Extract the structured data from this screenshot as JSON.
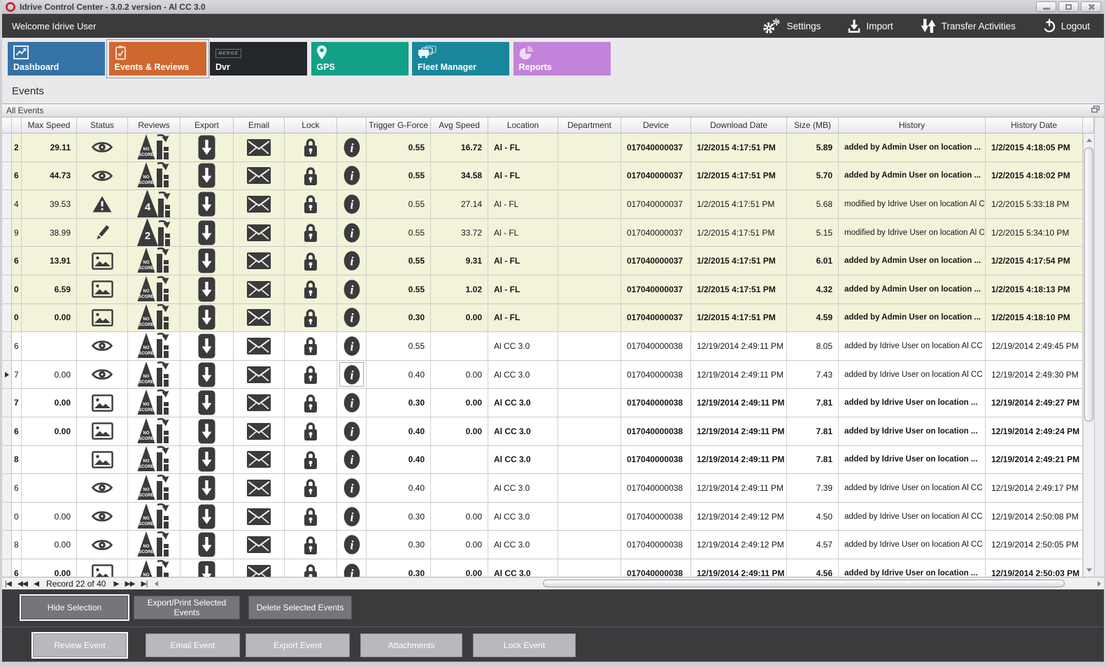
{
  "window": {
    "title": "Idrive Control Center - 3.0.2 version - Al CC 3.0",
    "logo_icon": "red-ring-logo-icon",
    "controls": [
      "minimize",
      "maximize",
      "close"
    ]
  },
  "header": {
    "welcome": "Welcome Idrive User",
    "actions": [
      {
        "label": "Settings",
        "icon": "gear-icon"
      },
      {
        "label": "Import",
        "icon": "import-icon"
      },
      {
        "label": "Transfer Activities",
        "icon": "transfer-icon"
      },
      {
        "label": "Logout",
        "icon": "power-icon"
      }
    ]
  },
  "tabs": [
    {
      "label": "Dashboard",
      "icon": "dashboard-icon",
      "color": "#3572a8",
      "active": false,
      "badge": ""
    },
    {
      "label": "Events & Reviews",
      "icon": "events-icon",
      "color": "#d0672e",
      "active": true,
      "badge": ""
    },
    {
      "label": "Dvr",
      "icon": "dvr-icon",
      "color": "#24272c",
      "active": false,
      "badge": "MERGE"
    },
    {
      "label": "GPS",
      "icon": "gps-pin-icon",
      "color": "#12a187",
      "active": false,
      "badge": ""
    },
    {
      "label": "Fleet Manager",
      "icon": "fleet-icon",
      "color": "#19879b",
      "active": false,
      "badge": ""
    },
    {
      "label": "Reports",
      "icon": "reports-pie-icon",
      "color": "#c383da",
      "active": false,
      "badge": ""
    }
  ],
  "page_title": "Events",
  "panel": {
    "title": "All Events",
    "corner_icon": "restore-panel-icon"
  },
  "table": {
    "columns": [
      "",
      "",
      "Max Speed",
      "Status",
      "Reviews",
      "Export",
      "Email",
      "Lock",
      "",
      "Trigger G-Force",
      "Avg Speed",
      "Location",
      "Department",
      "Device",
      "Download Date",
      "Size (MB)",
      "History",
      "History Date"
    ],
    "action_icons": {
      "export": "export-icon",
      "email": "email-icon",
      "lock": "lock-icon",
      "info": "info-icon"
    },
    "rows": [
      {
        "idp": "2",
        "max_speed": "29.11",
        "status": "eye-icon",
        "review_score": "NO SCORE",
        "trigger_g_force": "0.55",
        "avg_speed": "16.72",
        "location": "Al - FL",
        "department": "",
        "device": "017040000037",
        "download_date": "1/2/2015 4:17:51 PM",
        "size_mb": "5.89",
        "history": "added by Admin User on location ...",
        "history_date": "1/2/2015 4:18:05 PM",
        "bold": true,
        "beige": true,
        "selected": false
      },
      {
        "idp": "6",
        "max_speed": "44.73",
        "status": "eye-icon",
        "review_score": "NO SCORE",
        "trigger_g_force": "0.55",
        "avg_speed": "34.58",
        "location": "Al - FL",
        "department": "",
        "device": "017040000037",
        "download_date": "1/2/2015 4:17:51 PM",
        "size_mb": "5.70",
        "history": "added by Admin User on location ...",
        "history_date": "1/2/2015 4:18:02 PM",
        "bold": true,
        "beige": true,
        "selected": false
      },
      {
        "idp": "4",
        "max_speed": "39.53",
        "status": "warning-icon",
        "review_score": "4",
        "trigger_g_force": "0.55",
        "avg_speed": "27.14",
        "location": "Al - FL",
        "department": "",
        "device": "017040000037",
        "download_date": "1/2/2015 4:17:51 PM",
        "size_mb": "5.68",
        "history": "modified by Idrive User on location Al C...",
        "history_date": "1/2/2015 5:33:18 PM",
        "bold": false,
        "beige": true,
        "selected": false
      },
      {
        "idp": "9",
        "max_speed": "38.99",
        "status": "pencil-icon",
        "review_score": "2",
        "trigger_g_force": "0.55",
        "avg_speed": "33.72",
        "location": "Al - FL",
        "department": "",
        "device": "017040000037",
        "download_date": "1/2/2015 4:17:51 PM",
        "size_mb": "5.15",
        "history": "modified by Idrive User on location Al C...",
        "history_date": "1/2/2015 5:34:10 PM",
        "bold": false,
        "beige": true,
        "selected": false
      },
      {
        "idp": "6",
        "max_speed": "13.91",
        "status": "image-icon",
        "review_score": "NO SCORE",
        "trigger_g_force": "0.55",
        "avg_speed": "9.31",
        "location": "Al - FL",
        "department": "",
        "device": "017040000037",
        "download_date": "1/2/2015 4:17:51 PM",
        "size_mb": "6.01",
        "history": "added by Admin User on location ...",
        "history_date": "1/2/2015 4:17:54 PM",
        "bold": true,
        "beige": true,
        "selected": false
      },
      {
        "idp": "0",
        "max_speed": "6.59",
        "status": "image-icon",
        "review_score": "NO SCORE",
        "trigger_g_force": "0.55",
        "avg_speed": "1.02",
        "location": "Al - FL",
        "department": "",
        "device": "017040000037",
        "download_date": "1/2/2015 4:17:51 PM",
        "size_mb": "4.32",
        "history": "added by Admin User on location ...",
        "history_date": "1/2/2015 4:18:13 PM",
        "bold": true,
        "beige": true,
        "selected": false
      },
      {
        "idp": "0",
        "max_speed": "0.00",
        "status": "image-icon",
        "review_score": "NO SCORE",
        "trigger_g_force": "0.30",
        "avg_speed": "0.00",
        "location": "Al - FL",
        "department": "",
        "device": "017040000037",
        "download_date": "1/2/2015 4:17:51 PM",
        "size_mb": "4.59",
        "history": "added by Admin User on location ...",
        "history_date": "1/2/2015 4:18:10 PM",
        "bold": true,
        "beige": true,
        "selected": false
      },
      {
        "idp": "6",
        "max_speed": "",
        "status": "eye-icon",
        "review_score": "NO SCORE",
        "trigger_g_force": "0.55",
        "avg_speed": "",
        "location": "Al CC 3.0",
        "department": "",
        "device": "017040000038",
        "download_date": "12/19/2014 2:49:11 PM",
        "size_mb": "8.05",
        "history": "added by Idrive User on location Al CC ...",
        "history_date": "12/19/2014 2:49:45 PM",
        "bold": false,
        "beige": false,
        "selected": false
      },
      {
        "idp": "7",
        "max_speed": "0.00",
        "status": "eye-icon",
        "review_score": "NO SCORE",
        "trigger_g_force": "0.40",
        "avg_speed": "0.00",
        "location": "Al CC 3.0",
        "department": "",
        "device": "017040000038",
        "download_date": "12/19/2014 2:49:11 PM",
        "size_mb": "7.43",
        "history": "added by Idrive User on location Al CC ...",
        "history_date": "12/19/2014 2:49:30 PM",
        "bold": false,
        "beige": false,
        "selected": true
      },
      {
        "idp": "7",
        "max_speed": "0.00",
        "status": "image-icon",
        "review_score": "NO SCORE",
        "trigger_g_force": "0.30",
        "avg_speed": "0.00",
        "location": "Al CC 3.0",
        "department": "",
        "device": "017040000038",
        "download_date": "12/19/2014 2:49:11 PM",
        "size_mb": "7.81",
        "history": "added by Idrive User on location ...",
        "history_date": "12/19/2014 2:49:27 PM",
        "bold": true,
        "beige": false,
        "selected": false
      },
      {
        "idp": "6",
        "max_speed": "0.00",
        "status": "image-icon",
        "review_score": "NO SCORE",
        "trigger_g_force": "0.40",
        "avg_speed": "0.00",
        "location": "Al CC 3.0",
        "department": "",
        "device": "017040000038",
        "download_date": "12/19/2014 2:49:11 PM",
        "size_mb": "7.81",
        "history": "added by Idrive User on location ...",
        "history_date": "12/19/2014 2:49:24 PM",
        "bold": true,
        "beige": false,
        "selected": false
      },
      {
        "idp": "8",
        "max_speed": "",
        "status": "image-icon",
        "review_score": "NO SCORE",
        "trigger_g_force": "0.40",
        "avg_speed": "",
        "location": "Al CC 3.0",
        "department": "",
        "device": "017040000038",
        "download_date": "12/19/2014 2:49:11 PM",
        "size_mb": "7.81",
        "history": "added by Idrive User on location ...",
        "history_date": "12/19/2014 2:49:21 PM",
        "bold": true,
        "beige": false,
        "selected": false
      },
      {
        "idp": "6",
        "max_speed": "",
        "status": "eye-icon",
        "review_score": "NO SCORE",
        "trigger_g_force": "0.40",
        "avg_speed": "",
        "location": "Al CC 3.0",
        "department": "",
        "device": "017040000038",
        "download_date": "12/19/2014 2:49:11 PM",
        "size_mb": "7.39",
        "history": "added by Idrive User on location Al CC ...",
        "history_date": "12/19/2014 2:49:17 PM",
        "bold": false,
        "beige": false,
        "selected": false
      },
      {
        "idp": "0",
        "max_speed": "0.00",
        "status": "eye-icon",
        "review_score": "NO SCORE",
        "trigger_g_force": "0.30",
        "avg_speed": "0.00",
        "location": "Al CC 3.0",
        "department": "",
        "device": "017040000038",
        "download_date": "12/19/2014 2:49:12 PM",
        "size_mb": "4.50",
        "history": "added by Idrive User on location Al CC ...",
        "history_date": "12/19/2014 2:50:08 PM",
        "bold": false,
        "beige": false,
        "selected": false
      },
      {
        "idp": "8",
        "max_speed": "0.00",
        "status": "eye-icon",
        "review_score": "NO SCORE",
        "trigger_g_force": "0.30",
        "avg_speed": "0.00",
        "location": "Al CC 3.0",
        "department": "",
        "device": "017040000038",
        "download_date": "12/19/2014 2:49:12 PM",
        "size_mb": "4.57",
        "history": "added by Idrive User on location Al CC ...",
        "history_date": "12/19/2014 2:50:05 PM",
        "bold": false,
        "beige": false,
        "selected": false
      },
      {
        "idp": "6",
        "max_speed": "0.00",
        "status": "image-icon",
        "review_score": "NO SCORE",
        "trigger_g_force": "0.30",
        "avg_speed": "0.00",
        "location": "Al CC 3.0",
        "department": "",
        "device": "017040000038",
        "download_date": "12/19/2014 2:49:11 PM",
        "size_mb": "4.56",
        "history": "added by Idrive User on location ...",
        "history_date": "12/19/2014 2:50:03 PM",
        "bold": true,
        "beige": false,
        "selected": false
      }
    ]
  },
  "record_nav": {
    "first": "|◀",
    "prev_page": "◀◀",
    "prev": "◀",
    "label": "Record 22 of 40",
    "next": "▶",
    "next_page": "▶▶",
    "last": "▶|"
  },
  "selection_buttons": [
    "Hide Selection",
    "Export/Print Selected Events",
    "Delete Selected  Events"
  ],
  "event_buttons": [
    "Review Event",
    "Email Event",
    "Export Event",
    "Attachments",
    "Lock Event"
  ]
}
